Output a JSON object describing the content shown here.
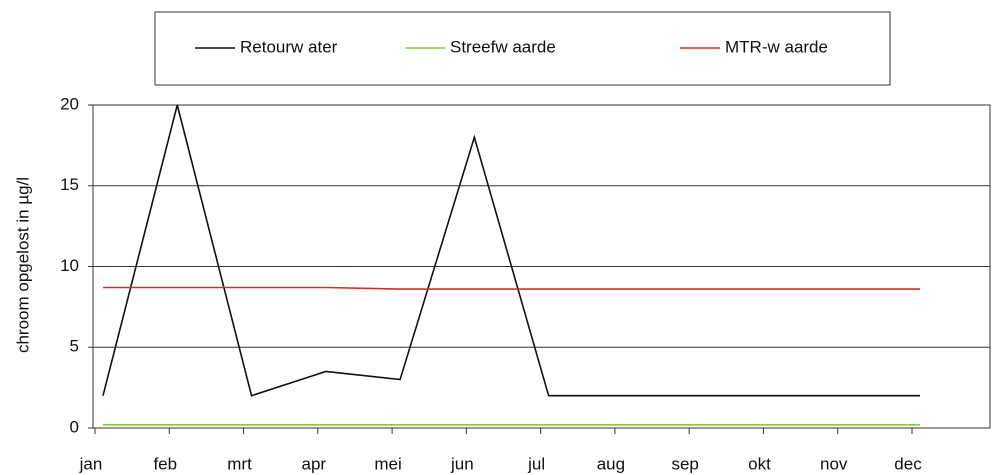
{
  "chart_data": {
    "type": "line",
    "y_label": "chroom opgelost in µg/l",
    "categories": [
      "jan",
      "feb",
      "mrt",
      "apr",
      "mei",
      "jun",
      "jul",
      "aug",
      "sep",
      "okt",
      "nov",
      "dec"
    ],
    "series": [
      {
        "name": "Retourw ater",
        "color": "#111111",
        "values": [
          2,
          20,
          2,
          3.5,
          3,
          18,
          2,
          2,
          2,
          2,
          2,
          2
        ]
      },
      {
        "name": "Streefw aarde",
        "color": "#8cc63f",
        "values": [
          0.2,
          0.2,
          0.2,
          0.2,
          0.2,
          0.2,
          0.2,
          0.2,
          0.2,
          0.2,
          0.2,
          0.2
        ]
      },
      {
        "name": "MTR-w aarde",
        "color": "#d0302a",
        "values": [
          8.7,
          8.7,
          8.7,
          8.7,
          8.6,
          8.6,
          8.6,
          8.6,
          8.6,
          8.6,
          8.6,
          8.6
        ]
      }
    ],
    "ylim": [
      0,
      20
    ],
    "yticks": [
      0,
      5,
      10,
      15,
      20
    ],
    "grid": true
  }
}
